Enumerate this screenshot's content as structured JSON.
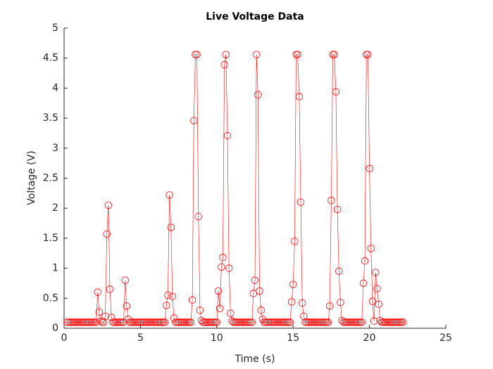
{
  "chart_data": {
    "type": "line",
    "title": "Live Voltage Data",
    "x_label": "Time (s)",
    "y_label": "Voltage (V)",
    "xlim": [
      0,
      25
    ],
    "xticks": [
      0,
      5,
      10,
      15,
      20,
      25
    ],
    "ylim": [
      0,
      5
    ],
    "yticks": [
      0,
      0.5,
      1,
      1.5,
      2,
      2.5,
      3,
      3.5,
      4,
      4.5,
      5
    ],
    "grid": false,
    "marker": "circle",
    "x": [
      0.2,
      0.3,
      0.4,
      0.5,
      0.6,
      0.7,
      0.8,
      0.9,
      1.0,
      1.1,
      1.2,
      1.3,
      1.4,
      1.5,
      1.6,
      1.7,
      1.8,
      1.9,
      2.0,
      2.1,
      2.2,
      2.3,
      2.4,
      2.5,
      2.6,
      2.7,
      2.8,
      2.9,
      3.0,
      3.1,
      3.2,
      3.3,
      3.4,
      3.5,
      3.6,
      3.7,
      3.8,
      3.9,
      4.0,
      4.1,
      4.2,
      4.3,
      4.4,
      4.5,
      4.6,
      4.7,
      4.8,
      4.9,
      5.0,
      5.1,
      5.2,
      5.3,
      5.4,
      5.5,
      5.6,
      5.7,
      5.8,
      5.9,
      6.0,
      6.1,
      6.2,
      6.3,
      6.4,
      6.5,
      6.6,
      6.7,
      6.8,
      6.9,
      7.0,
      7.1,
      7.2,
      7.3,
      7.4,
      7.5,
      7.6,
      7.7,
      7.8,
      7.9,
      8.0,
      8.1,
      8.2,
      8.3,
      8.4,
      8.5,
      8.6,
      8.7,
      8.8,
      8.9,
      9.0,
      9.1,
      9.2,
      9.3,
      9.4,
      9.5,
      9.6,
      9.7,
      9.8,
      9.9,
      10.0,
      10.1,
      10.2,
      10.3,
      10.4,
      10.5,
      10.6,
      10.7,
      10.8,
      10.9,
      11.0,
      11.1,
      11.2,
      11.3,
      11.4,
      11.5,
      11.6,
      11.7,
      11.8,
      11.9,
      12.0,
      12.1,
      12.2,
      12.3,
      12.4,
      12.5,
      12.6,
      12.7,
      12.8,
      12.9,
      13.0,
      13.1,
      13.2,
      13.3,
      13.4,
      13.5,
      13.6,
      13.7,
      13.8,
      13.9,
      14.0,
      14.1,
      14.2,
      14.3,
      14.4,
      14.5,
      14.6,
      14.7,
      14.8,
      14.9,
      15.0,
      15.1,
      15.2,
      15.3,
      15.4,
      15.5,
      15.6,
      15.7,
      15.8,
      15.9,
      16.0,
      16.1,
      16.2,
      16.3,
      16.4,
      16.5,
      16.6,
      16.7,
      16.8,
      16.9,
      17.0,
      17.1,
      17.2,
      17.3,
      17.4,
      17.5,
      17.6,
      17.7,
      17.8,
      17.9,
      18.0,
      18.1,
      18.2,
      18.3,
      18.4,
      18.5,
      18.6,
      18.7,
      18.8,
      18.9,
      19.0,
      19.1,
      19.2,
      19.3,
      19.4,
      19.5,
      19.6,
      19.7,
      19.8,
      19.9,
      20.0,
      20.1,
      20.2,
      20.3,
      20.4,
      20.5,
      20.6,
      20.7,
      20.8,
      20.9,
      21.0,
      21.1,
      21.2,
      21.3,
      21.4,
      21.5,
      21.6,
      21.7,
      21.8,
      21.9,
      22.0,
      22.1,
      22.2
    ],
    "series": [
      {
        "color": "#ff0000",
        "values": [
          0.1,
          0.1,
          0.1,
          0.1,
          0.1,
          0.1,
          0.1,
          0.1,
          0.1,
          0.1,
          0.1,
          0.1,
          0.1,
          0.1,
          0.1,
          0.1,
          0.1,
          0.1,
          0.1,
          0.1,
          0.6,
          0.27,
          0.12,
          0.1,
          0.1,
          0.2,
          1.57,
          2.05,
          0.65,
          0.18,
          0.1,
          0.1,
          0.1,
          0.1,
          0.1,
          0.1,
          0.1,
          0.1,
          0.8,
          0.37,
          0.15,
          0.1,
          0.1,
          0.1,
          0.1,
          0.1,
          0.1,
          0.1,
          0.1,
          0.1,
          0.1,
          0.1,
          0.1,
          0.1,
          0.1,
          0.1,
          0.1,
          0.1,
          0.1,
          0.1,
          0.1,
          0.1,
          0.1,
          0.1,
          0.1,
          0.38,
          0.55,
          2.22,
          1.68,
          0.53,
          0.17,
          0.1,
          0.1,
          0.1,
          0.1,
          0.1,
          0.1,
          0.1,
          0.1,
          0.1,
          0.1,
          0.1,
          0.47,
          3.46,
          4.56,
          4.56,
          1.86,
          0.3,
          0.13,
          0.1,
          0.1,
          0.1,
          0.1,
          0.1,
          0.1,
          0.1,
          0.1,
          0.1,
          0.1,
          0.62,
          0.33,
          1.02,
          1.18,
          4.39,
          4.56,
          3.21,
          1.0,
          0.25,
          0.12,
          0.1,
          0.1,
          0.1,
          0.1,
          0.1,
          0.1,
          0.1,
          0.1,
          0.1,
          0.1,
          0.1,
          0.1,
          0.1,
          0.58,
          0.8,
          4.56,
          3.89,
          0.62,
          0.3,
          0.15,
          0.1,
          0.1,
          0.1,
          0.1,
          0.1,
          0.1,
          0.1,
          0.1,
          0.1,
          0.1,
          0.1,
          0.1,
          0.1,
          0.1,
          0.1,
          0.1,
          0.1,
          0.1,
          0.44,
          0.73,
          1.45,
          4.56,
          4.56,
          3.86,
          2.1,
          0.42,
          0.2,
          0.1,
          0.1,
          0.1,
          0.1,
          0.1,
          0.1,
          0.1,
          0.1,
          0.1,
          0.1,
          0.1,
          0.1,
          0.1,
          0.1,
          0.1,
          0.1,
          0.37,
          2.13,
          4.56,
          4.56,
          3.94,
          1.98,
          0.95,
          0.43,
          0.13,
          0.1,
          0.1,
          0.1,
          0.1,
          0.1,
          0.1,
          0.1,
          0.1,
          0.1,
          0.1,
          0.1,
          0.1,
          0.1,
          0.75,
          1.12,
          4.56,
          4.56,
          2.66,
          1.33,
          0.45,
          0.12,
          0.93,
          0.66,
          0.4,
          0.13,
          0.1,
          0.1,
          0.1,
          0.1,
          0.1,
          0.1,
          0.1,
          0.1,
          0.1,
          0.1,
          0.1,
          0.1,
          0.1,
          0.1,
          0.1
        ]
      }
    ]
  }
}
